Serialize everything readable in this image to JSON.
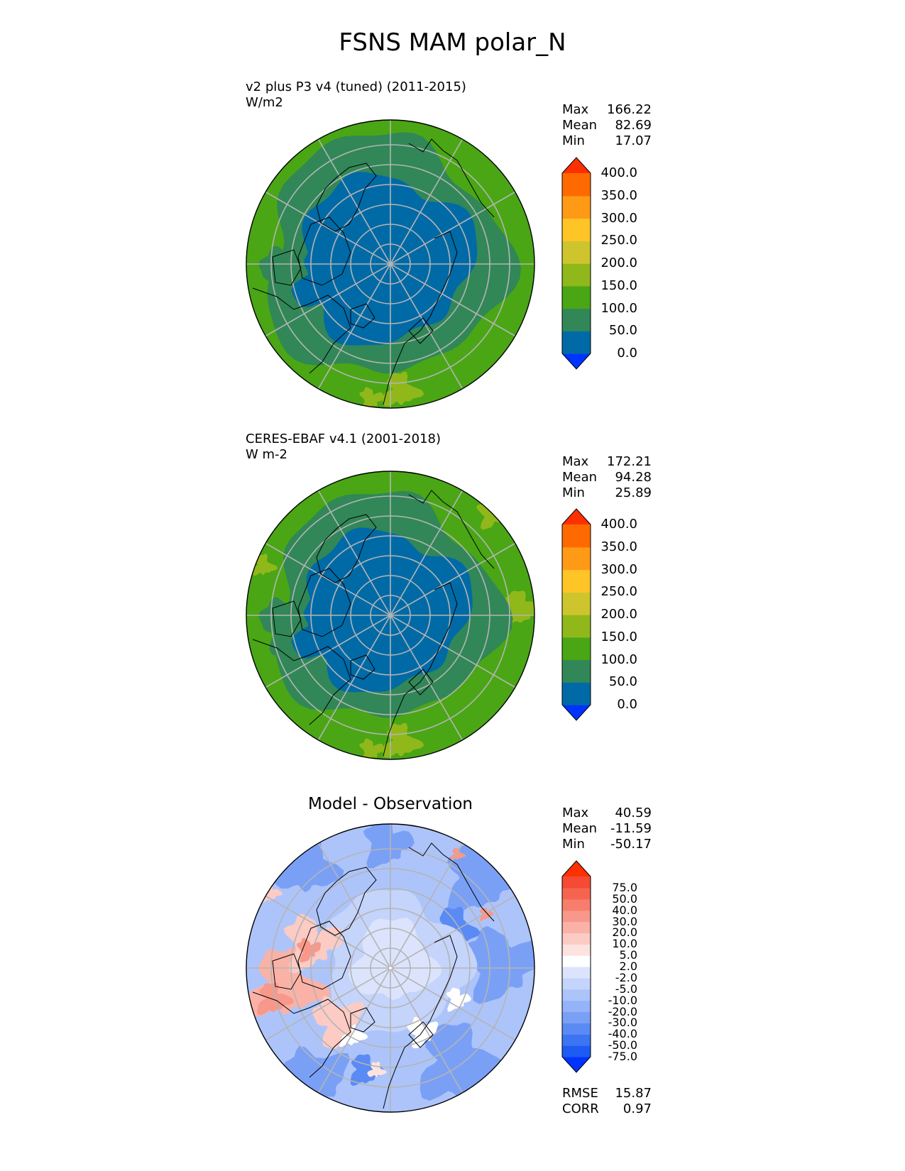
{
  "title": "FSNS MAM polar_N",
  "colors": {
    "abs_levels": [
      "#0033ff",
      "#006aa6",
      "#318757",
      "#4aa615",
      "#90b81a",
      "#cec52e",
      "#ffc526",
      "#ff9a17",
      "#ff6a00",
      "#ff3000"
    ],
    "diff_levels": [
      "#0033ff",
      "#1e5af4",
      "#3c74f2",
      "#5a8af4",
      "#7aa0f6",
      "#94b3f8",
      "#adc4fa",
      "#c4d4fb",
      "#dbe4fc",
      "#ffffff",
      "#fce3e0",
      "#fbcbc4",
      "#fab2a6",
      "#f8988a",
      "#f77e6d",
      "#f66450",
      "#f54a33",
      "#ff3000"
    ],
    "land_outline": "#000000",
    "grid": "#b4b4b4"
  },
  "panels": [
    {
      "name": "test",
      "title_left": "v2 plus P3 v4 (tuned) (2011-2015)",
      "units": "W/m2",
      "title_center": "",
      "stats": [
        {
          "label": "Max",
          "value": "166.22"
        },
        {
          "label": "Mean",
          "value": "82.69"
        },
        {
          "label": "Min",
          "value": "17.07"
        }
      ],
      "colorbar": {
        "levels": [
          "0.0",
          "50.0",
          "100.0",
          "150.0",
          "200.0",
          "250.0",
          "300.0",
          "350.0",
          "400.0"
        ],
        "extend": "both"
      }
    },
    {
      "name": "reference",
      "title_left": "CERES-EBAF v4.1 (2001-2018)",
      "units": "W m-2",
      "title_center": "",
      "stats": [
        {
          "label": "Max",
          "value": "172.21"
        },
        {
          "label": "Mean",
          "value": "94.28"
        },
        {
          "label": "Min",
          "value": "25.89"
        }
      ],
      "colorbar": {
        "levels": [
          "0.0",
          "50.0",
          "100.0",
          "150.0",
          "200.0",
          "250.0",
          "300.0",
          "350.0",
          "400.0"
        ],
        "extend": "both"
      }
    },
    {
      "name": "difference",
      "title_left": "",
      "units": "",
      "title_center": "Model - Observation",
      "stats": [
        {
          "label": "Max",
          "value": "40.59"
        },
        {
          "label": "Mean",
          "value": "-11.59"
        },
        {
          "label": "Min",
          "value": "-50.17"
        }
      ],
      "colorbar": {
        "levels": [
          "-75.0",
          "-50.0",
          "-40.0",
          "-30.0",
          "-20.0",
          "-10.0",
          "-5.0",
          "-2.0",
          "2.0",
          "5.0",
          "10.0",
          "20.0",
          "30.0",
          "40.0",
          "50.0",
          "75.0"
        ],
        "extend": "both"
      },
      "metrics": [
        {
          "label": "RMSE",
          "value": "15.87"
        },
        {
          "label": "CORR",
          "value": "0.97"
        }
      ]
    }
  ],
  "chart_data": [
    {
      "type": "heatmap",
      "title": "v2 plus P3 v4 (tuned) (2011-2015)",
      "units": "W/m2",
      "projection": "north-polar-stereographic",
      "levels": [
        0,
        50,
        100,
        150,
        200,
        250,
        300,
        350,
        400
      ],
      "stats": {
        "max": 166.22,
        "mean": 82.69,
        "min": 17.07
      },
      "grid": true
    },
    {
      "type": "heatmap",
      "title": "CERES-EBAF v4.1 (2001-2018)",
      "units": "W m-2",
      "projection": "north-polar-stereographic",
      "levels": [
        0,
        50,
        100,
        150,
        200,
        250,
        300,
        350,
        400
      ],
      "stats": {
        "max": 172.21,
        "mean": 94.28,
        "min": 25.89
      },
      "grid": true
    },
    {
      "type": "heatmap",
      "title": "Model - Observation",
      "projection": "north-polar-stereographic",
      "levels": [
        -75,
        -50,
        -40,
        -30,
        -20,
        -10,
        -5,
        -2,
        2,
        5,
        10,
        20,
        30,
        40,
        50,
        75
      ],
      "stats": {
        "max": 40.59,
        "mean": -11.59,
        "min": -50.17,
        "rmse": 15.87,
        "corr": 0.97
      },
      "grid": true
    }
  ]
}
